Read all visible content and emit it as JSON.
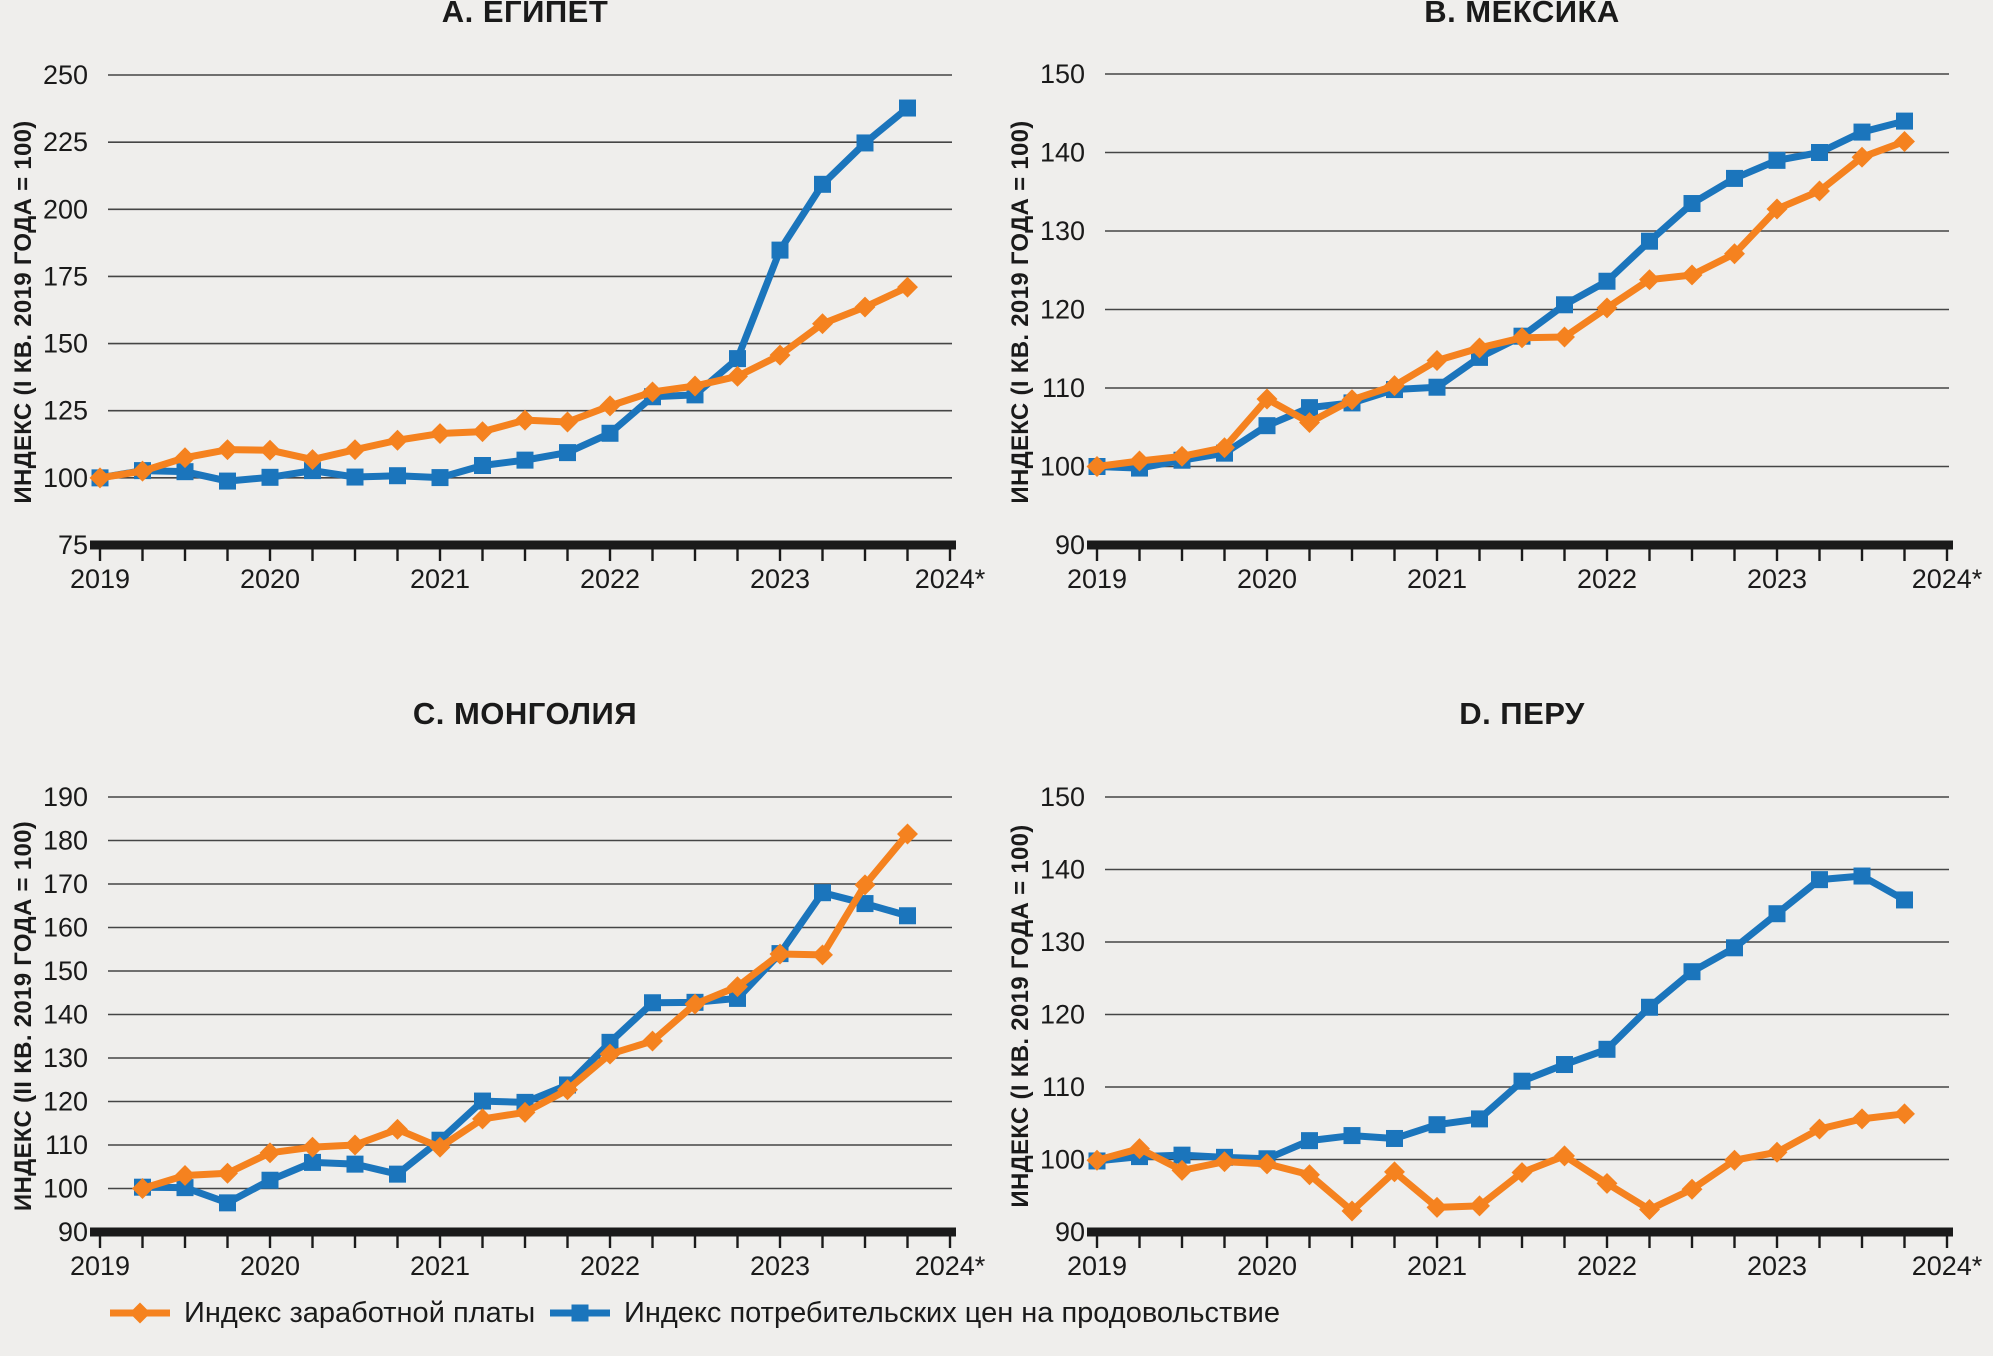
{
  "colors": {
    "wage": "#F5821F",
    "cpi": "#1B75BC",
    "grid": "#454545",
    "axis": "#1a1a1a",
    "background": "#efeeec",
    "text": "#1a1a1a"
  },
  "legend": {
    "items": [
      {
        "label": "Индекс заработной платы",
        "series": "wage",
        "marker": "diamond"
      },
      {
        "label": "Индекс потребительских цен на продовольствие",
        "series": "cpi",
        "marker": "square"
      }
    ]
  },
  "chart_data": [
    {
      "id": "egypt",
      "type": "line",
      "title": "A. ЕГИПЕТ",
      "ylabel": "ИНДЕКС (I КВ. 2019 ГОДА = 100)",
      "ylim": [
        75,
        250
      ],
      "ytick_step": 25,
      "xlim": [
        2019,
        2024
      ],
      "xtick_labels": [
        "2019",
        "2020",
        "2021",
        "2022",
        "2023",
        "2024*"
      ],
      "start_quarter": "2019Q1",
      "x_step_years": 0.25,
      "grid": true,
      "series": [
        {
          "key": "wage",
          "name": "Индекс заработной платы",
          "values": [
            100,
            102.5,
            107.5,
            110.5,
            110.3,
            106.8,
            110.5,
            114.0,
            116.5,
            117.2,
            121.5,
            120.8,
            126.8,
            132.0,
            134.2,
            137.8,
            145.7,
            157.4,
            163.6,
            171.0
          ]
        },
        {
          "key": "cpi",
          "name": "Индекс потребительских цен на продовольствие",
          "values": [
            100,
            102.7,
            102.3,
            98.8,
            100.2,
            102.7,
            100.3,
            100.8,
            100.1,
            104.6,
            106.6,
            109.4,
            116.6,
            130.2,
            130.9,
            144.4,
            184.8,
            209.3,
            224.7,
            237.7
          ]
        }
      ]
    },
    {
      "id": "mexico",
      "type": "line",
      "title": "B. МЕКСИКА",
      "ylabel": "ИНДЕКС (I КВ. 2019 ГОДА = 100)",
      "ylim": [
        90,
        150
      ],
      "ytick_step": 10,
      "xlim": [
        2019,
        2024
      ],
      "xtick_labels": [
        "2019",
        "2020",
        "2021",
        "2022",
        "2023",
        "2024*"
      ],
      "start_quarter": "2019Q1",
      "x_step_years": 0.25,
      "grid": true,
      "series": [
        {
          "key": "wage",
          "name": "Индекс заработной платы",
          "values": [
            100,
            100.7,
            101.3,
            102.4,
            108.6,
            105.6,
            108.5,
            110.3,
            113.5,
            115.1,
            116.4,
            116.5,
            120.2,
            123.8,
            124.4,
            127.1,
            132.8,
            135.1,
            139.4,
            141.4
          ]
        },
        {
          "key": "cpi",
          "name": "Индекс потребительских цен на продовольствие",
          "values": [
            100,
            99.8,
            100.8,
            101.7,
            105.2,
            107.5,
            108.1,
            109.8,
            110.1,
            113.9,
            116.6,
            120.6,
            123.6,
            128.7,
            133.5,
            136.7,
            139.0,
            140.0,
            142.6,
            144.0
          ]
        }
      ]
    },
    {
      "id": "mongolia",
      "type": "line",
      "title": "C. МОНГОЛИЯ",
      "ylabel": "ИНДЕКС (II КВ. 2019 ГОДА = 100)",
      "ylim": [
        90,
        190
      ],
      "ytick_step": 10,
      "xlim": [
        2019,
        2024
      ],
      "xtick_labels": [
        "2019",
        "2020",
        "2021",
        "2022",
        "2023",
        "2024*"
      ],
      "start_quarter": "2019Q2",
      "x_step_years": 0.25,
      "grid": true,
      "series": [
        {
          "key": "wage",
          "name": "Индекс заработной платы",
          "values": [
            100.0,
            103.0,
            103.5,
            108.2,
            109.5,
            110.0,
            113.6,
            109.5,
            116.0,
            117.5,
            122.7,
            130.9,
            133.9,
            142.4,
            146.4,
            153.9,
            153.7,
            169.8,
            181.5
          ]
        },
        {
          "key": "cpi",
          "name": "Индекс потребительских цен на продовольствие",
          "values": [
            100.3,
            100.2,
            96.7,
            101.9,
            106.0,
            105.6,
            103.3,
            111.1,
            120.1,
            119.8,
            123.8,
            133.6,
            142.7,
            142.8,
            143.7,
            154.0,
            168.0,
            165.5,
            162.7
          ]
        }
      ]
    },
    {
      "id": "peru",
      "type": "line",
      "title": "D. ПЕРУ",
      "ylabel": "ИНДЕКС (I КВ. 2019 ГОДА = 100)",
      "ylim": [
        90,
        150
      ],
      "ytick_step": 10,
      "xlim": [
        2019,
        2024
      ],
      "xtick_labels": [
        "2019",
        "2020",
        "2021",
        "2022",
        "2023",
        "2024*"
      ],
      "start_quarter": "2019Q1",
      "x_step_years": 0.25,
      "grid": true,
      "series": [
        {
          "key": "wage",
          "name": "Индекс заработной платы",
          "values": [
            99.9,
            101.5,
            98.5,
            99.7,
            99.4,
            97.9,
            92.9,
            98.3,
            93.4,
            93.6,
            98.2,
            100.5,
            96.7,
            93.1,
            95.9,
            99.9,
            101.0,
            104.2,
            105.6,
            106.3
          ]
        },
        {
          "key": "cpi",
          "name": "Индекс потребительских цен на продовольствие",
          "values": [
            99.8,
            100.4,
            100.6,
            100.3,
            100.1,
            102.6,
            103.3,
            102.9,
            104.8,
            105.6,
            110.8,
            113.1,
            115.2,
            121.0,
            125.9,
            129.2,
            133.9,
            138.6,
            139.1,
            135.8
          ]
        }
      ]
    }
  ]
}
